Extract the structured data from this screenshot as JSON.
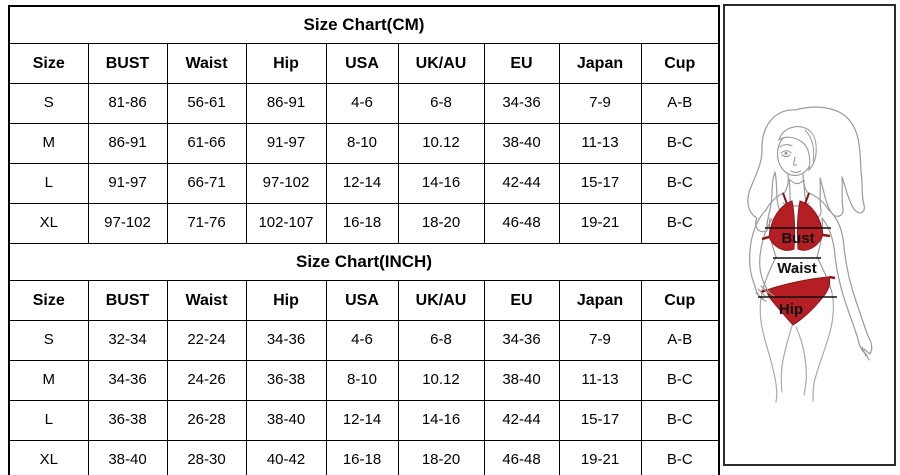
{
  "chart_data": [
    {
      "type": "table",
      "title": "Size Chart(CM)",
      "columns": [
        "Size",
        "BUST",
        "Waist",
        "Hip",
        "USA",
        "UK/AU",
        "EU",
        "Japan",
        "Cup"
      ],
      "rows": [
        [
          "S",
          "81-86",
          "56-61",
          "86-91",
          "4-6",
          "6-8",
          "34-36",
          "7-9",
          "A-B"
        ],
        [
          "M",
          "86-91",
          "61-66",
          "91-97",
          "8-10",
          "10.12",
          "38-40",
          "11-13",
          "B-C"
        ],
        [
          "L",
          "91-97",
          "66-71",
          "97-102",
          "12-14",
          "14-16",
          "42-44",
          "15-17",
          "B-C"
        ],
        [
          "XL",
          "97-102",
          "71-76",
          "102-107",
          "16-18",
          "18-20",
          "46-48",
          "19-21",
          "B-C"
        ]
      ]
    },
    {
      "type": "table",
      "title": "Size Chart(INCH)",
      "columns": [
        "Size",
        "BUST",
        "Waist",
        "Hip",
        "USA",
        "UK/AU",
        "EU",
        "Japan",
        "Cup"
      ],
      "rows": [
        [
          "S",
          "32-34",
          "22-24",
          "34-36",
          "4-6",
          "6-8",
          "34-36",
          "7-9",
          "A-B"
        ],
        [
          "M",
          "34-36",
          "24-26",
          "36-38",
          "8-10",
          "10.12",
          "38-40",
          "11-13",
          "B-C"
        ],
        [
          "L",
          "36-38",
          "26-28",
          "38-40",
          "12-14",
          "14-16",
          "42-44",
          "15-17",
          "B-C"
        ],
        [
          "XL",
          "38-40",
          "28-30",
          "40-42",
          "16-18",
          "18-20",
          "46-48",
          "19-21",
          "B-C"
        ]
      ]
    }
  ],
  "figure": {
    "labels": {
      "bust": "Bust",
      "waist": "Waist",
      "hip": "Hip"
    },
    "colors": {
      "bikini_red": "#b51e23",
      "bikini_edge": "#8d151a",
      "outline_gray": "#9b9b9b",
      "measure_line": "#111111"
    }
  }
}
